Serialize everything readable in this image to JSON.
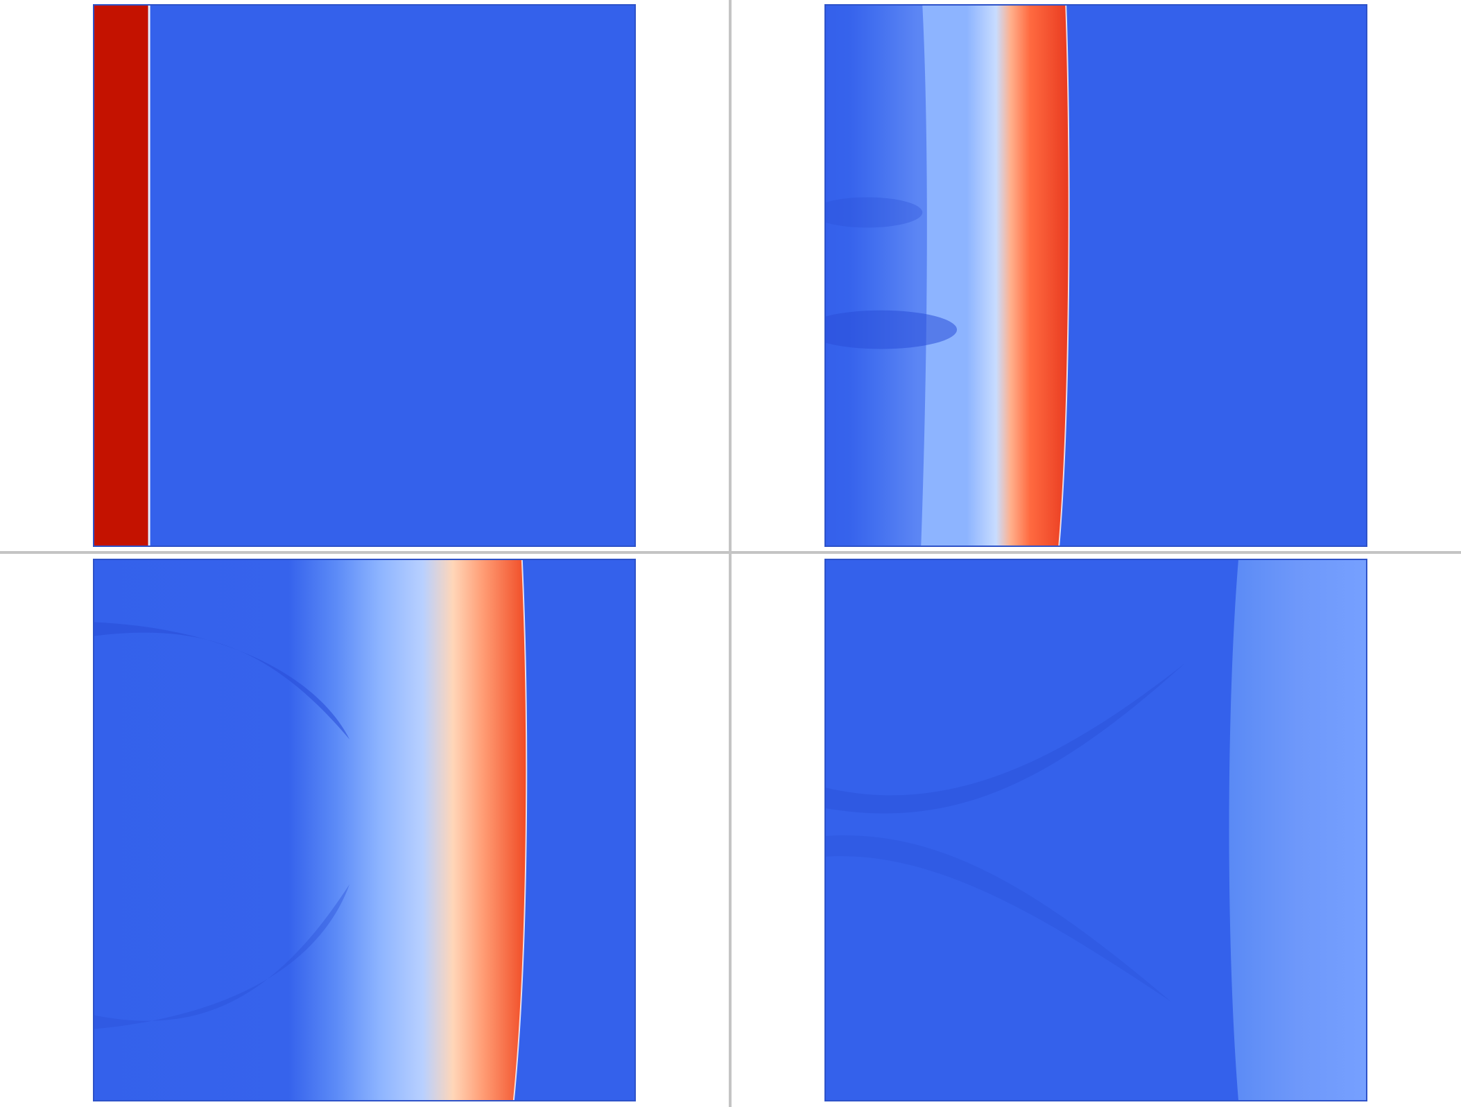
{
  "figure": {
    "colors": {
      "background": "#3461eb",
      "cold_dark": "#2a4fd8",
      "cool_light": "#8db4ff",
      "pale": "#c8dcff",
      "warm_light": "#ffb08c",
      "warm": "#ff6a40",
      "hot": "#e83a20",
      "hot_dark": "#c41200",
      "divider": "#c4c4c4"
    },
    "panels": [
      {
        "id": "panel-1",
        "position": "top-left"
      },
      {
        "id": "panel-2",
        "position": "top-right"
      },
      {
        "id": "panel-3",
        "position": "bottom-left"
      },
      {
        "id": "panel-4",
        "position": "bottom-right"
      }
    ]
  }
}
